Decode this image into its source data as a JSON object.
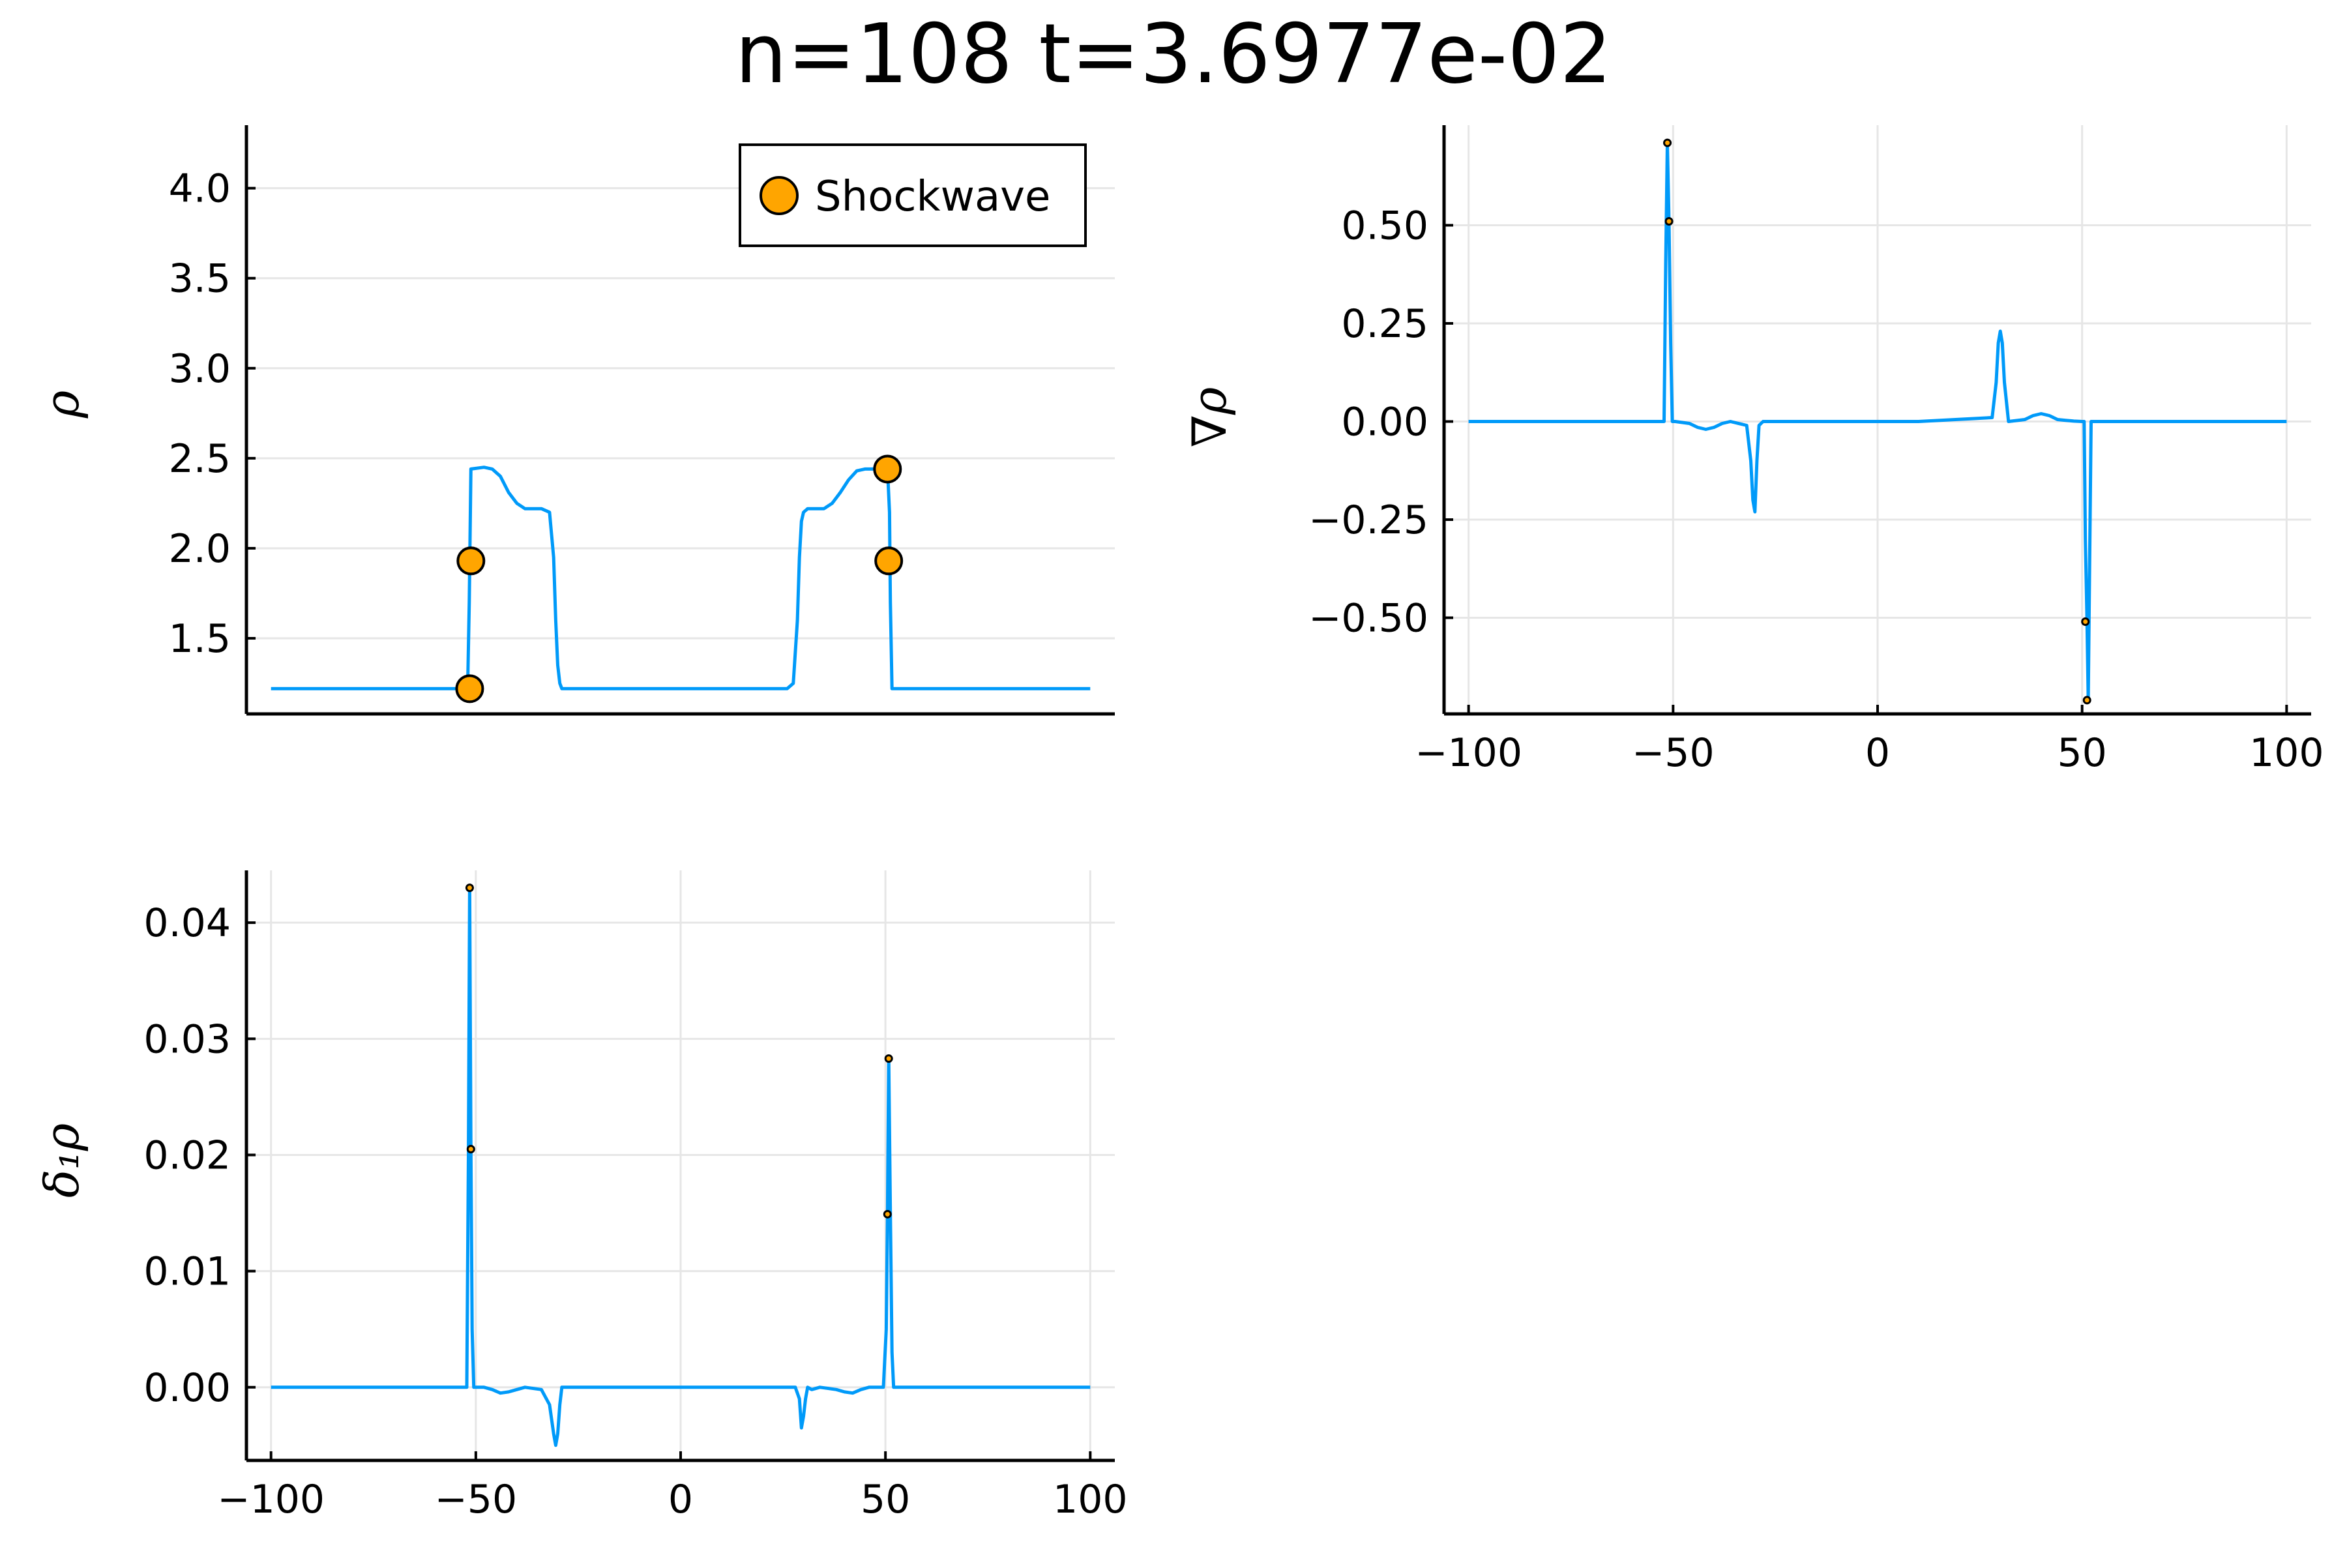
{
  "figure": {
    "title": "n=108 t=3.6977e-02"
  },
  "colors": {
    "series": "#009AF9",
    "marker": "#FFA500",
    "marker_edge": "#000000",
    "grid": "#E6E6E6",
    "axis": "#000000"
  },
  "chart_data": [
    {
      "id": "rho",
      "type": "line",
      "title": "",
      "xlabel": "",
      "ylabel": "ρ",
      "xlim": [
        -106,
        106
      ],
      "ylim": [
        1.08,
        4.35
      ],
      "yticks": [
        1.5,
        2.0,
        2.5,
        3.0,
        3.5,
        4.0
      ],
      "yticklabels": [
        "1.5",
        "2.0",
        "2.5",
        "3.0",
        "3.5",
        "4.0"
      ],
      "xticks": [],
      "xticklabels": [],
      "grid": true,
      "legend": {
        "position": "top-right",
        "entries": [
          "Shockwave"
        ]
      },
      "series": [
        {
          "kind": "line",
          "x": [
            -100,
            -52,
            -51.6,
            -51.2,
            -48,
            -46,
            -44,
            -42,
            -40,
            -38,
            -36,
            -34,
            -32,
            -31,
            -30.5,
            -30,
            -29.5,
            -29,
            -28,
            -26,
            -10,
            10,
            26,
            27.5,
            28.5,
            29,
            29.5,
            30,
            31,
            33,
            35,
            37,
            39,
            41,
            43,
            45,
            46,
            47,
            48,
            49,
            50,
            50.5,
            51,
            51.2,
            51.6,
            52,
            100
          ],
          "y": [
            1.22,
            1.22,
            1.7,
            2.44,
            2.45,
            2.44,
            2.4,
            2.31,
            2.25,
            2.22,
            2.22,
            2.22,
            2.2,
            1.95,
            1.6,
            1.35,
            1.25,
            1.22,
            1.22,
            1.22,
            1.22,
            1.22,
            1.22,
            1.25,
            1.6,
            1.95,
            2.15,
            2.2,
            2.22,
            2.22,
            2.22,
            2.25,
            2.31,
            2.38,
            2.43,
            2.44,
            2.44,
            2.44,
            2.45,
            2.44,
            2.44,
            2.44,
            2.2,
            1.7,
            1.22,
            1.22,
            1.22
          ]
        },
        {
          "kind": "scatter",
          "name": "Shockwave",
          "x": [
            -51.5,
            -51.2,
            50.5,
            50.8
          ],
          "y": [
            1.22,
            1.93,
            2.44,
            1.93
          ],
          "marker_size": "large"
        }
      ]
    },
    {
      "id": "grad_rho",
      "type": "line",
      "title": "",
      "xlabel": "",
      "ylabel": "∇ρ",
      "xlim": [
        -106,
        106
      ],
      "ylim": [
        -0.745,
        0.755
      ],
      "yticks": [
        -0.5,
        -0.25,
        0.0,
        0.25,
        0.5
      ],
      "yticklabels": [
        "−0.50",
        "−0.25",
        "0.00",
        "0.25",
        "0.50"
      ],
      "xticks": [
        -100,
        -50,
        0,
        50,
        100
      ],
      "xticklabels": [
        "−100",
        "−50",
        "0",
        "50",
        "100"
      ],
      "grid": true,
      "series": [
        {
          "kind": "line",
          "x": [
            -100,
            -52.2,
            -51.8,
            -51.4,
            -51.0,
            -50.6,
            -50.2,
            -49.5,
            -46,
            -44,
            -42,
            -40,
            -38,
            -36,
            -32,
            -31,
            -30.5,
            -30,
            -29.5,
            -29,
            -28,
            -10,
            10,
            28,
            29,
            29.5,
            30,
            30.5,
            31,
            32,
            36,
            38,
            40,
            42,
            44,
            46,
            48,
            50,
            50.5,
            50.8,
            51.2,
            51.5,
            51.8,
            52.2,
            100
          ],
          "y": [
            0,
            0,
            0.4,
            0.71,
            0.51,
            0.2,
            0,
            0.0,
            -0.005,
            -0.015,
            -0.02,
            -0.015,
            -0.005,
            0,
            -0.01,
            -0.1,
            -0.2,
            -0.23,
            -0.1,
            -0.01,
            0,
            0,
            0,
            0.01,
            0.1,
            0.2,
            0.23,
            0.2,
            0.1,
            0.0,
            0.005,
            0.015,
            0.02,
            0.015,
            0.005,
            0.003,
            0.001,
            0,
            0,
            -0.3,
            -0.51,
            -0.71,
            -0.4,
            0,
            0
          ]
        },
        {
          "kind": "scatter",
          "x": [
            -51.4,
            -51.0,
            50.8,
            51.2
          ],
          "y": [
            0.71,
            0.51,
            -0.51,
            -0.71
          ],
          "marker_size": "small"
        }
      ]
    },
    {
      "id": "delta1_rho",
      "type": "line",
      "title": "",
      "xlabel": "",
      "ylabel": "δ₁ρ",
      "xlim": [
        -106,
        106
      ],
      "ylim": [
        -0.0063,
        0.0445
      ],
      "yticks": [
        0.0,
        0.01,
        0.02,
        0.03,
        0.04
      ],
      "yticklabels": [
        "0.00",
        "0.01",
        "0.02",
        "0.03",
        "0.04"
      ],
      "xticks": [
        -100,
        -50,
        0,
        50,
        100
      ],
      "xticklabels": [
        "−100",
        "−50",
        "0",
        "50",
        "100"
      ],
      "grid": true,
      "series": [
        {
          "kind": "line",
          "x": [
            -100,
            -52.2,
            -51.8,
            -51.5,
            -51.2,
            -50.9,
            -50.5,
            -50.0,
            -48,
            -46,
            -44,
            -42,
            -40,
            -38,
            -34,
            -32,
            -31,
            -30.5,
            -30,
            -29.5,
            -29,
            -28,
            -10,
            10,
            28,
            29,
            29.5,
            30,
            30.5,
            31,
            32,
            34,
            38,
            40,
            42,
            44,
            46,
            48,
            49.5,
            50.2,
            50.5,
            50.8,
            51.2,
            51.6,
            52,
            100
          ],
          "y": [
            0,
            0,
            0.02,
            0.043,
            0.0205,
            0.005,
            0,
            0.0,
            0.0,
            -0.0002,
            -0.0005,
            -0.0004,
            -0.0002,
            0,
            -0.0002,
            -0.0015,
            -0.004,
            -0.005,
            -0.004,
            -0.0015,
            0,
            0,
            0,
            0,
            0,
            -0.001,
            -0.0035,
            -0.0025,
            -0.001,
            0,
            -0.0002,
            0,
            -0.0002,
            -0.0004,
            -0.0005,
            -0.0002,
            0,
            0.0,
            0,
            0.005,
            0.015,
            0.0283,
            0.015,
            0.003,
            0,
            0
          ]
        },
        {
          "kind": "scatter",
          "x": [
            -51.5,
            -51.2,
            50.8,
            50.5
          ],
          "y": [
            0.043,
            0.0205,
            0.0283,
            0.0149
          ],
          "marker_size": "small"
        }
      ]
    }
  ]
}
